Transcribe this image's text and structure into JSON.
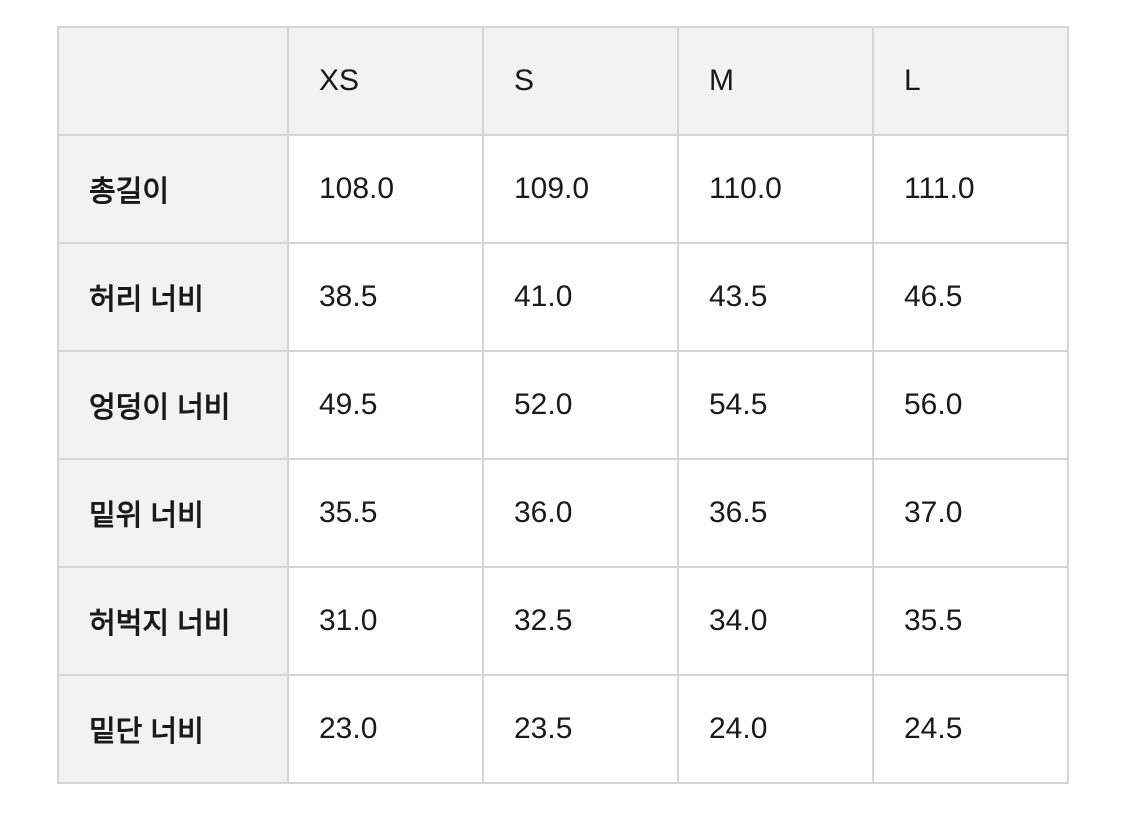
{
  "table": {
    "corner": "",
    "columns": [
      "XS",
      "S",
      "M",
      "L"
    ],
    "rows": [
      {
        "label": "총길이",
        "values": [
          "108.0",
          "109.0",
          "110.0",
          "111.0"
        ]
      },
      {
        "label": "허리 너비",
        "values": [
          "38.5",
          "41.0",
          "43.5",
          "46.5"
        ]
      },
      {
        "label": "엉덩이 너비",
        "values": [
          "49.5",
          "52.0",
          "54.5",
          "56.0"
        ]
      },
      {
        "label": "밑위 너비",
        "values": [
          "35.5",
          "36.0",
          "36.5",
          "37.0"
        ]
      },
      {
        "label": "허벅지 너비",
        "values": [
          "31.0",
          "32.5",
          "34.0",
          "35.5"
        ]
      },
      {
        "label": "밑단 너비",
        "values": [
          "23.0",
          "23.5",
          "24.0",
          "24.5"
        ]
      }
    ]
  },
  "colors": {
    "header_bg": "#f2f2f2",
    "border": "#d5d5d5",
    "cell_bg": "#ffffff"
  }
}
